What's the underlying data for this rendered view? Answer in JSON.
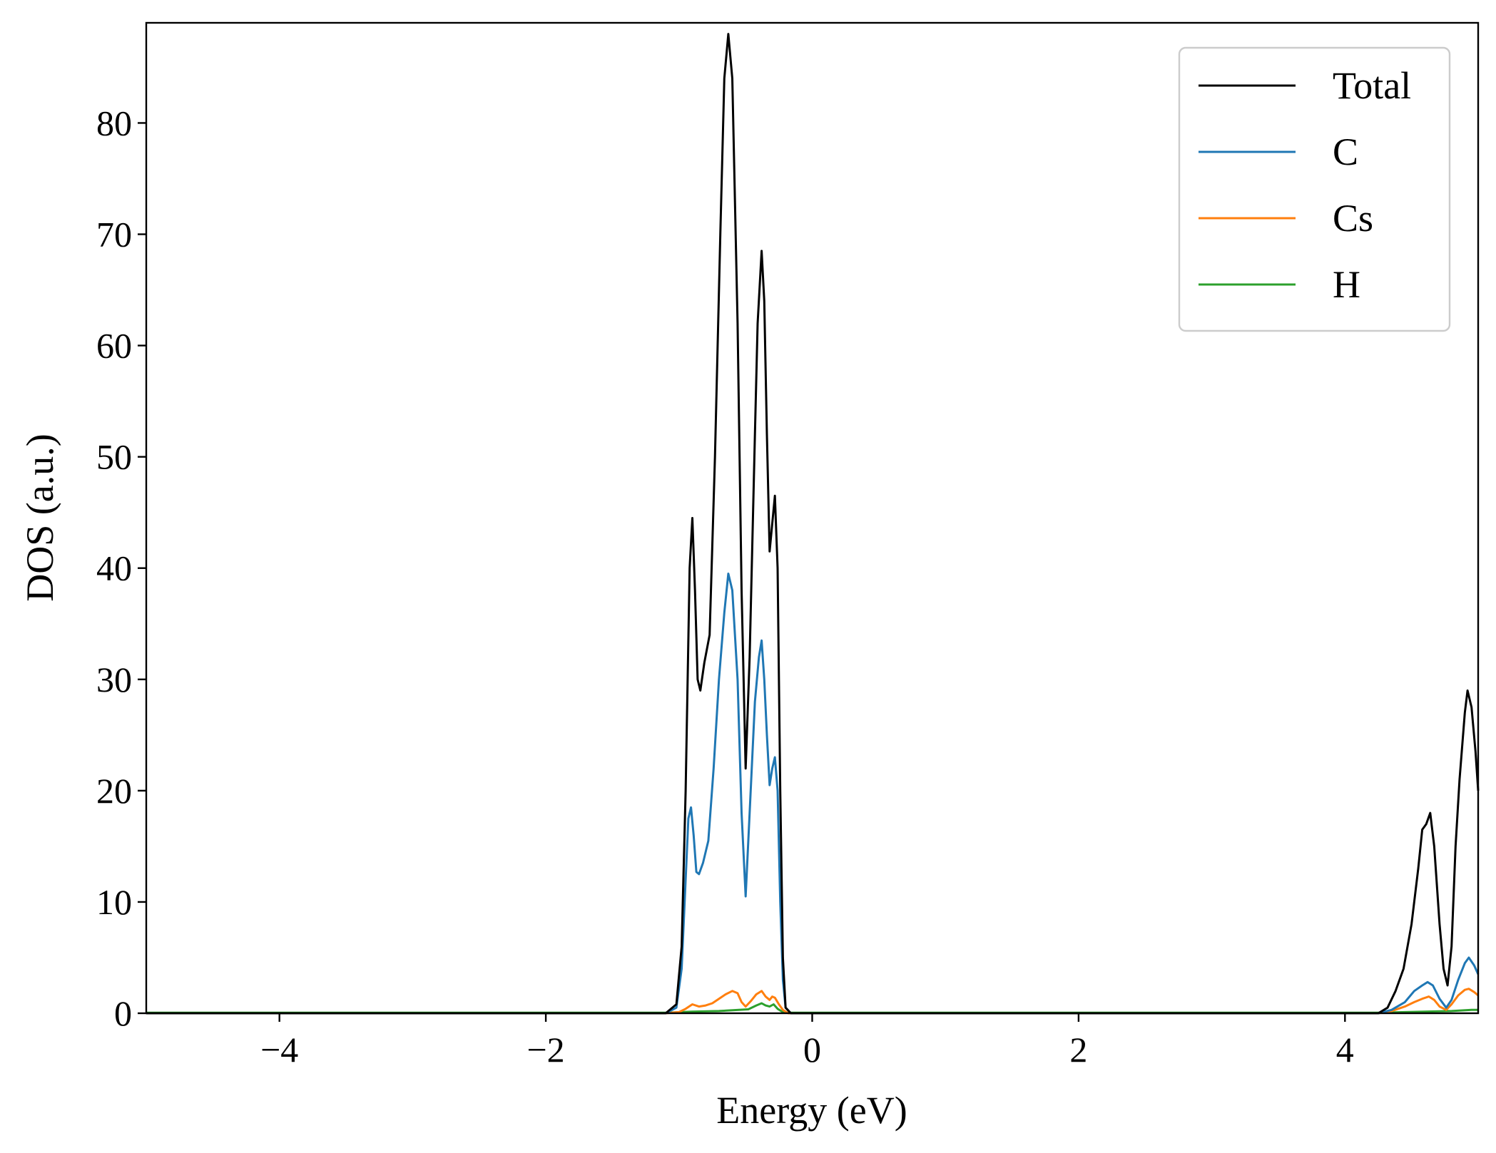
{
  "chart_data": {
    "type": "line",
    "title": "",
    "xlabel": "Energy (eV)",
    "ylabel": "DOS (a.u.)",
    "xlim": [
      -5,
      5
    ],
    "ylim": [
      0,
      89
    ],
    "x_ticks": [
      -4,
      -2,
      0,
      2,
      4
    ],
    "x_tick_labels": [
      "−4",
      "−2",
      "0",
      "2",
      "4"
    ],
    "y_ticks": [
      0,
      10,
      20,
      30,
      40,
      50,
      60,
      70,
      80
    ],
    "y_tick_labels": [
      "0",
      "10",
      "20",
      "30",
      "40",
      "50",
      "60",
      "70",
      "80"
    ],
    "grid": false,
    "legend_position": "top-right",
    "series": [
      {
        "name": "Total",
        "color": "#000000",
        "points": [
          [
            -5,
            0
          ],
          [
            -1.1,
            0
          ],
          [
            -1.02,
            0.8
          ],
          [
            -0.98,
            6
          ],
          [
            -0.95,
            20
          ],
          [
            -0.92,
            40
          ],
          [
            -0.9,
            44.5
          ],
          [
            -0.88,
            38
          ],
          [
            -0.86,
            30
          ],
          [
            -0.84,
            29
          ],
          [
            -0.81,
            31.5
          ],
          [
            -0.77,
            34
          ],
          [
            -0.73,
            50
          ],
          [
            -0.69,
            70
          ],
          [
            -0.66,
            84
          ],
          [
            -0.63,
            88
          ],
          [
            -0.6,
            84
          ],
          [
            -0.56,
            62
          ],
          [
            -0.53,
            38
          ],
          [
            -0.5,
            22
          ],
          [
            -0.47,
            32
          ],
          [
            -0.43,
            52
          ],
          [
            -0.41,
            62
          ],
          [
            -0.38,
            68.5
          ],
          [
            -0.36,
            64
          ],
          [
            -0.34,
            52
          ],
          [
            -0.32,
            41.5
          ],
          [
            -0.3,
            44
          ],
          [
            -0.28,
            46.5
          ],
          [
            -0.26,
            40
          ],
          [
            -0.24,
            20
          ],
          [
            -0.22,
            5
          ],
          [
            -0.2,
            0.5
          ],
          [
            -0.16,
            0
          ],
          [
            4.25,
            0
          ],
          [
            4.32,
            0.5
          ],
          [
            4.38,
            2
          ],
          [
            4.44,
            4
          ],
          [
            4.5,
            8
          ],
          [
            4.55,
            13
          ],
          [
            4.58,
            16.5
          ],
          [
            4.61,
            17
          ],
          [
            4.64,
            18
          ],
          [
            4.67,
            15
          ],
          [
            4.71,
            8
          ],
          [
            4.74,
            4
          ],
          [
            4.77,
            2.5
          ],
          [
            4.8,
            6
          ],
          [
            4.83,
            15
          ],
          [
            4.86,
            21
          ],
          [
            4.9,
            27
          ],
          [
            4.92,
            29
          ],
          [
            4.95,
            27.5
          ],
          [
            4.98,
            23.5
          ],
          [
            5,
            20
          ]
        ]
      },
      {
        "name": "C",
        "color": "#1f77b4",
        "points": [
          [
            -5,
            0
          ],
          [
            -1.1,
            0
          ],
          [
            -1.02,
            0.5
          ],
          [
            -0.98,
            4
          ],
          [
            -0.95,
            12
          ],
          [
            -0.93,
            17.5
          ],
          [
            -0.91,
            18.5
          ],
          [
            -0.89,
            16
          ],
          [
            -0.87,
            12.7
          ],
          [
            -0.85,
            12.5
          ],
          [
            -0.82,
            13.5
          ],
          [
            -0.78,
            15.5
          ],
          [
            -0.74,
            22
          ],
          [
            -0.7,
            30
          ],
          [
            -0.66,
            36
          ],
          [
            -0.63,
            39.5
          ],
          [
            -0.6,
            38
          ],
          [
            -0.56,
            30
          ],
          [
            -0.53,
            18
          ],
          [
            -0.5,
            10.5
          ],
          [
            -0.47,
            18
          ],
          [
            -0.43,
            28
          ],
          [
            -0.4,
            32
          ],
          [
            -0.38,
            33.5
          ],
          [
            -0.36,
            30
          ],
          [
            -0.34,
            25
          ],
          [
            -0.32,
            20.5
          ],
          [
            -0.3,
            22
          ],
          [
            -0.28,
            23
          ],
          [
            -0.26,
            20
          ],
          [
            -0.24,
            10
          ],
          [
            -0.22,
            3
          ],
          [
            -0.2,
            0.5
          ],
          [
            -0.16,
            0
          ],
          [
            4.25,
            0
          ],
          [
            4.35,
            0.3
          ],
          [
            4.45,
            1
          ],
          [
            4.52,
            2
          ],
          [
            4.58,
            2.5
          ],
          [
            4.62,
            2.8
          ],
          [
            4.66,
            2.5
          ],
          [
            4.71,
            1.3
          ],
          [
            4.76,
            0.5
          ],
          [
            4.8,
            1.2
          ],
          [
            4.85,
            3
          ],
          [
            4.9,
            4.5
          ],
          [
            4.93,
            5
          ],
          [
            4.97,
            4.3
          ],
          [
            5,
            3.5
          ]
        ]
      },
      {
        "name": "Cs",
        "color": "#ff7f0e",
        "points": [
          [
            -5,
            0
          ],
          [
            -1.1,
            0
          ],
          [
            -1.0,
            0.1
          ],
          [
            -0.95,
            0.4
          ],
          [
            -0.9,
            0.8
          ],
          [
            -0.85,
            0.6
          ],
          [
            -0.8,
            0.7
          ],
          [
            -0.75,
            0.9
          ],
          [
            -0.7,
            1.3
          ],
          [
            -0.65,
            1.7
          ],
          [
            -0.6,
            2.0
          ],
          [
            -0.56,
            1.8
          ],
          [
            -0.53,
            1.0
          ],
          [
            -0.5,
            0.6
          ],
          [
            -0.46,
            1.1
          ],
          [
            -0.42,
            1.7
          ],
          [
            -0.38,
            2.0
          ],
          [
            -0.35,
            1.5
          ],
          [
            -0.32,
            1.2
          ],
          [
            -0.3,
            1.5
          ],
          [
            -0.28,
            1.4
          ],
          [
            -0.25,
            0.8
          ],
          [
            -0.22,
            0.3
          ],
          [
            -0.18,
            0
          ],
          [
            4.25,
            0
          ],
          [
            4.35,
            0.2
          ],
          [
            4.45,
            0.6
          ],
          [
            4.52,
            1.0
          ],
          [
            4.58,
            1.3
          ],
          [
            4.63,
            1.5
          ],
          [
            4.67,
            1.2
          ],
          [
            4.71,
            0.6
          ],
          [
            4.76,
            0.3
          ],
          [
            4.8,
            0.8
          ],
          [
            4.85,
            1.6
          ],
          [
            4.9,
            2.1
          ],
          [
            4.93,
            2.2
          ],
          [
            4.97,
            1.9
          ],
          [
            5,
            1.6
          ]
        ]
      },
      {
        "name": "H",
        "color": "#2ca02c",
        "points": [
          [
            -5,
            0.05
          ],
          [
            -1.1,
            0.05
          ],
          [
            -0.9,
            0.15
          ],
          [
            -0.7,
            0.2
          ],
          [
            -0.55,
            0.3
          ],
          [
            -0.48,
            0.35
          ],
          [
            -0.42,
            0.7
          ],
          [
            -0.38,
            0.9
          ],
          [
            -0.35,
            0.7
          ],
          [
            -0.32,
            0.6
          ],
          [
            -0.29,
            0.8
          ],
          [
            -0.26,
            0.4
          ],
          [
            -0.22,
            0.1
          ],
          [
            -0.18,
            0.05
          ],
          [
            4.25,
            0.05
          ],
          [
            4.6,
            0.15
          ],
          [
            4.8,
            0.2
          ],
          [
            4.95,
            0.3
          ],
          [
            5,
            0.3
          ]
        ]
      }
    ]
  }
}
